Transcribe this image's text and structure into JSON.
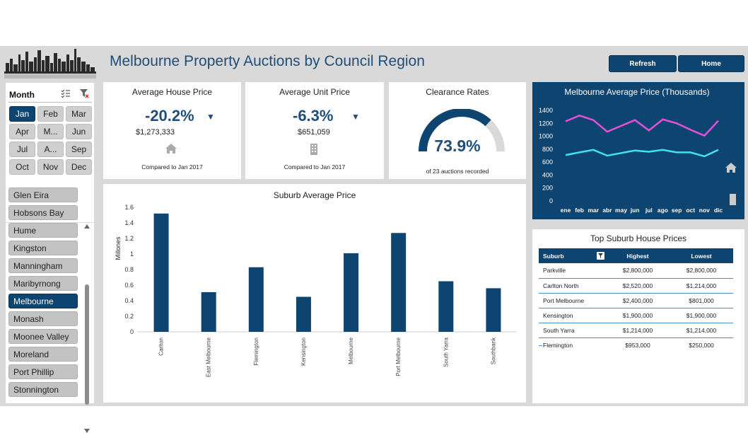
{
  "header": {
    "title": "Melbourne Property Auctions by Council Region",
    "refresh_label": "Refresh",
    "home_label": "Home"
  },
  "month_slicer": {
    "title": "Month",
    "items": [
      "Jan",
      "Feb",
      "Mar",
      "Apr",
      "M...",
      "Jun",
      "Jul",
      "A...",
      "Sep",
      "Oct",
      "Nov",
      "Dec"
    ],
    "selected": "Jan"
  },
  "region_slicer": {
    "items": [
      "Glen Eira",
      "Hobsons Bay",
      "Hume",
      "Kingston",
      "Manningham",
      "Maribyrnong",
      "Melbourne",
      "Monash",
      "Moonee Valley",
      "Moreland",
      "Port Phillip",
      "Stonnington"
    ],
    "selected": "Melbourne"
  },
  "kpis": {
    "house": {
      "title": "Average House Price",
      "change": "-20.2%",
      "value": "$1,273,333",
      "footer": "Compared to Jan 2017",
      "arrow": "▼"
    },
    "unit": {
      "title": "Average Unit Price",
      "change": "-6.3%",
      "value": "$651,059",
      "footer": "Compared to Jan 2017",
      "arrow": "▼"
    },
    "clearance": {
      "title": "Clearance Rates",
      "rate": "73.9%",
      "rate_fraction": 0.739,
      "footer": "of 23 auctions recorded"
    }
  },
  "colors": {
    "navy": "#0e4470",
    "magenta": "#e84fd8",
    "cyan": "#3fe3ef",
    "gauge_bg": "#d9d9d9"
  },
  "chart_data": [
    {
      "type": "bar",
      "title": "Suburb Average Price",
      "ylabel": "Millones",
      "categories": [
        "Carlton",
        "East Melbourne",
        "Flemington",
        "Kensington",
        "Melbourne",
        "Port Melbourne",
        "South Yarra",
        "Southbank"
      ],
      "values": [
        1.52,
        0.51,
        0.83,
        0.45,
        1.01,
        1.27,
        0.65,
        0.56
      ],
      "ylim": [
        0,
        1.6
      ],
      "yticks": [
        "0",
        "0.2",
        "0.4",
        "0.6",
        "0.8",
        "1",
        "1.2",
        "1.4",
        "1.6"
      ]
    },
    {
      "type": "line",
      "title": "Melbourne Average Price (Thousands)",
      "categories": [
        "ene",
        "feb",
        "mar",
        "abr",
        "may",
        "jun",
        "jul",
        "ago",
        "sep",
        "oct",
        "nov",
        "dic"
      ],
      "series": [
        {
          "values": [
            1230,
            1320,
            1250,
            1070,
            1160,
            1250,
            1090,
            1260,
            1200,
            1100,
            1010,
            1240
          ]
        },
        {
          "values": [
            710,
            750,
            790,
            700,
            740,
            780,
            760,
            790,
            750,
            750,
            690,
            790
          ]
        }
      ],
      "ylim": [
        0,
        1400
      ],
      "yticks": [
        "0",
        "200",
        "400",
        "600",
        "800",
        "1000",
        "1200",
        "1400"
      ]
    }
  ],
  "top_table": {
    "title": "Top Suburb House Prices",
    "columns": [
      "Suburb",
      "Highest",
      "Lowest"
    ],
    "rows": [
      [
        "Parkville",
        "$2,800,000",
        "$2,800,000"
      ],
      [
        "Carlton North",
        "$2,520,000",
        "$1,214,000"
      ],
      [
        "Port Melbourne",
        "$2,400,000",
        "$801,000"
      ],
      [
        "Kensington",
        "$1,900,000",
        "$1,900,000"
      ],
      [
        "South Yarra",
        "$1,214,000",
        "$1,214,000"
      ],
      [
        "Flemington",
        "$953,000",
        "$250,000"
      ]
    ]
  }
}
